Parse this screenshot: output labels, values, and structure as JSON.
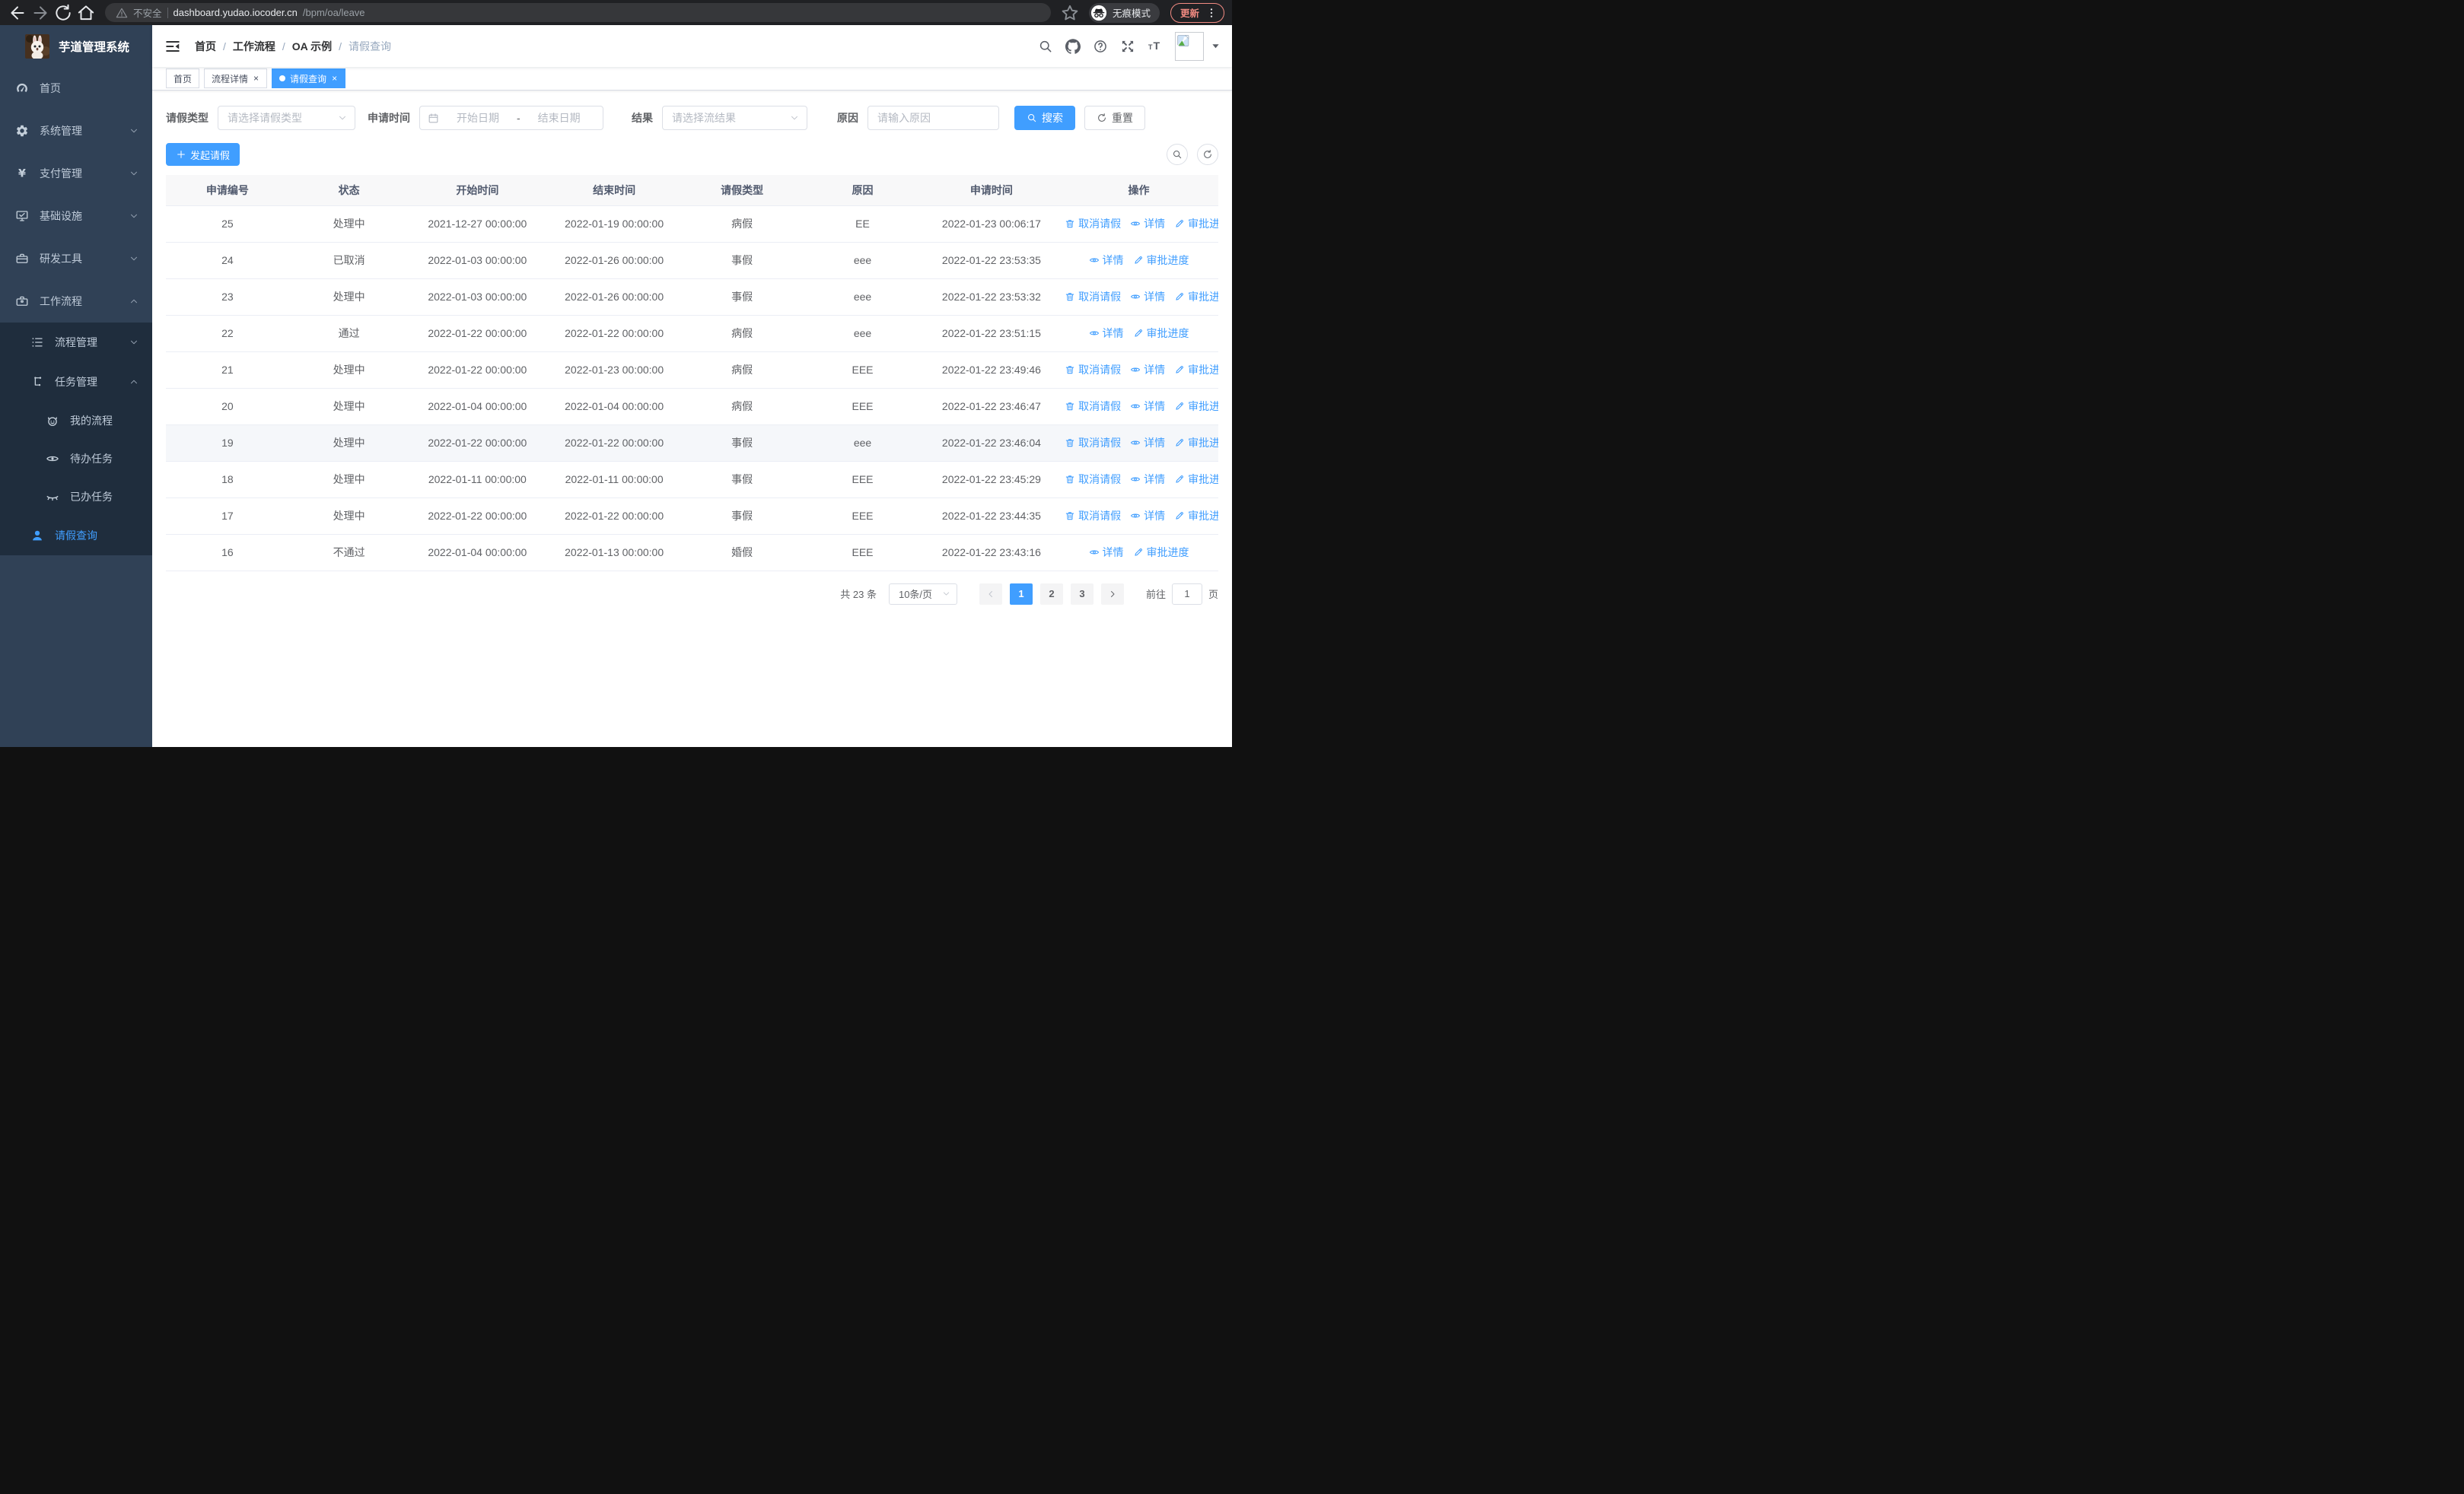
{
  "browser": {
    "security_label": "不安全",
    "url_host": "dashboard.yudao.iocoder.cn",
    "url_path": "/bpm/oa/leave",
    "incognito_label": "无痕模式",
    "update_label": "更新"
  },
  "sidebar": {
    "title": "芋道管理系统",
    "menu": [
      {
        "id": "home",
        "label": "首页",
        "icon": "dashboard-icon",
        "level": 1,
        "chevron": null,
        "active": false,
        "sub": false
      },
      {
        "id": "system",
        "label": "系统管理",
        "icon": "gear-icon",
        "level": 1,
        "chevron": "down",
        "active": false,
        "sub": false
      },
      {
        "id": "payment",
        "label": "支付管理",
        "icon": "yen-icon",
        "level": 1,
        "chevron": "down",
        "active": false,
        "sub": false
      },
      {
        "id": "infra",
        "label": "基础设施",
        "icon": "monitor-icon",
        "level": 1,
        "chevron": "down",
        "active": false,
        "sub": false
      },
      {
        "id": "devtools",
        "label": "研发工具",
        "icon": "toolbox-icon",
        "level": 1,
        "chevron": "down",
        "active": false,
        "sub": false
      },
      {
        "id": "workflow",
        "label": "工作流程",
        "icon": "briefcase-icon",
        "level": 1,
        "chevron": "up",
        "active": false,
        "sub": false
      },
      {
        "id": "process-mgmt",
        "label": "流程管理",
        "icon": "tree-list-icon",
        "level": 2,
        "chevron": "down",
        "active": false,
        "sub": true
      },
      {
        "id": "task-mgmt",
        "label": "任务管理",
        "icon": "relation-icon",
        "level": 2,
        "chevron": "up",
        "active": false,
        "sub": true
      },
      {
        "id": "my-process",
        "label": "我的流程",
        "icon": "robot-face-icon",
        "level": 3,
        "chevron": null,
        "active": false,
        "sub": true
      },
      {
        "id": "todo-tasks",
        "label": "待办任务",
        "icon": "eye-open-icon",
        "level": 3,
        "chevron": null,
        "active": false,
        "sub": true
      },
      {
        "id": "done-tasks",
        "label": "已办任务",
        "icon": "eye-closed-icon",
        "level": 3,
        "chevron": null,
        "active": false,
        "sub": true
      },
      {
        "id": "leave-query",
        "label": "请假查询",
        "icon": "user-icon",
        "level": 2,
        "chevron": null,
        "active": true,
        "sub": true
      }
    ]
  },
  "header": {
    "breadcrumb": [
      {
        "label": "首页",
        "current": false
      },
      {
        "label": "工作流程",
        "current": false
      },
      {
        "label": "OA 示例",
        "current": false
      },
      {
        "label": "请假查询",
        "current": true
      }
    ]
  },
  "tabs": [
    {
      "label": "首页",
      "active": false,
      "closable": false
    },
    {
      "label": "流程详情",
      "active": false,
      "closable": true
    },
    {
      "label": "请假查询",
      "active": true,
      "closable": true
    }
  ],
  "filters": {
    "type_label": "请假类型",
    "type_placeholder": "请选择请假类型",
    "time_label": "申请时间",
    "start_placeholder": "开始日期",
    "range_separator": "-",
    "end_placeholder": "结束日期",
    "result_label": "结果",
    "result_placeholder": "请选择流结果",
    "reason_label": "原因",
    "reason_placeholder": "请输入原因",
    "search_label": "搜索",
    "reset_label": "重置"
  },
  "toolbar": {
    "create_label": "发起请假"
  },
  "table": {
    "columns": [
      "申请编号",
      "状态",
      "开始时间",
      "结束时间",
      "请假类型",
      "原因",
      "申请时间",
      "操作"
    ],
    "action_labels": {
      "cancel": "取消请假",
      "detail": "详情",
      "progress": "审批进度"
    },
    "rows": [
      {
        "id": "25",
        "status": "处理中",
        "start": "2021-12-27 00:00:00",
        "end": "2022-01-19 00:00:00",
        "type": "病假",
        "reason": "EE",
        "applyTime": "2022-01-23 00:06:17",
        "cancelable": true,
        "highlight": false
      },
      {
        "id": "24",
        "status": "已取消",
        "start": "2022-01-03 00:00:00",
        "end": "2022-01-26 00:00:00",
        "type": "事假",
        "reason": "eee",
        "applyTime": "2022-01-22 23:53:35",
        "cancelable": false,
        "highlight": false
      },
      {
        "id": "23",
        "status": "处理中",
        "start": "2022-01-03 00:00:00",
        "end": "2022-01-26 00:00:00",
        "type": "事假",
        "reason": "eee",
        "applyTime": "2022-01-22 23:53:32",
        "cancelable": true,
        "highlight": false
      },
      {
        "id": "22",
        "status": "通过",
        "start": "2022-01-22 00:00:00",
        "end": "2022-01-22 00:00:00",
        "type": "病假",
        "reason": "eee",
        "applyTime": "2022-01-22 23:51:15",
        "cancelable": false,
        "highlight": false
      },
      {
        "id": "21",
        "status": "处理中",
        "start": "2022-01-22 00:00:00",
        "end": "2022-01-23 00:00:00",
        "type": "病假",
        "reason": "EEE",
        "applyTime": "2022-01-22 23:49:46",
        "cancelable": true,
        "highlight": false
      },
      {
        "id": "20",
        "status": "处理中",
        "start": "2022-01-04 00:00:00",
        "end": "2022-01-04 00:00:00",
        "type": "病假",
        "reason": "EEE",
        "applyTime": "2022-01-22 23:46:47",
        "cancelable": true,
        "highlight": false
      },
      {
        "id": "19",
        "status": "处理中",
        "start": "2022-01-22 00:00:00",
        "end": "2022-01-22 00:00:00",
        "type": "事假",
        "reason": "eee",
        "applyTime": "2022-01-22 23:46:04",
        "cancelable": true,
        "highlight": true
      },
      {
        "id": "18",
        "status": "处理中",
        "start": "2022-01-11 00:00:00",
        "end": "2022-01-11 00:00:00",
        "type": "事假",
        "reason": "EEE",
        "applyTime": "2022-01-22 23:45:29",
        "cancelable": true,
        "highlight": false
      },
      {
        "id": "17",
        "status": "处理中",
        "start": "2022-01-22 00:00:00",
        "end": "2022-01-22 00:00:00",
        "type": "事假",
        "reason": "EEE",
        "applyTime": "2022-01-22 23:44:35",
        "cancelable": true,
        "highlight": false
      },
      {
        "id": "16",
        "status": "不通过",
        "start": "2022-01-04 00:00:00",
        "end": "2022-01-13 00:00:00",
        "type": "婚假",
        "reason": "EEE",
        "applyTime": "2022-01-22 23:43:16",
        "cancelable": false,
        "highlight": false
      }
    ]
  },
  "pagination": {
    "total_label": "共 23 条",
    "page_size": "10条/页",
    "pages": [
      "1",
      "2",
      "3"
    ],
    "active_page": "1",
    "goto_label": "前往",
    "goto_value": "1",
    "page_suffix": "页"
  },
  "colors": {
    "primary": "#409eff",
    "sidebar_bg": "#304156",
    "sidebar_sub_bg": "#1f2d3d",
    "update_accent": "#f28b82"
  }
}
